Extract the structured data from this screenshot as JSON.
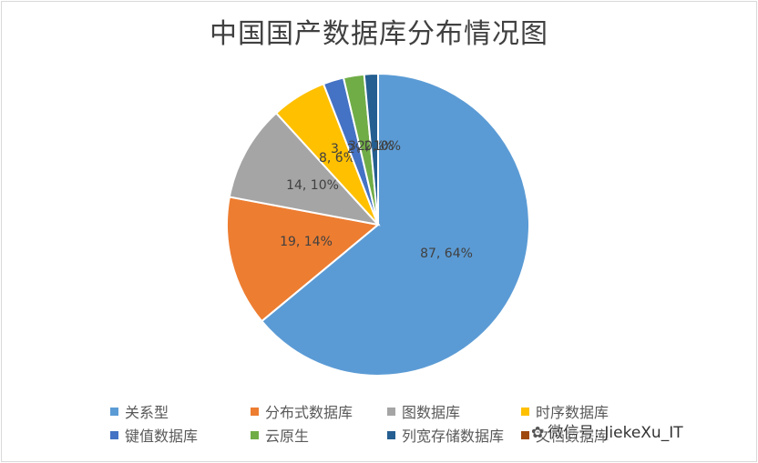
{
  "chart_data": {
    "type": "pie",
    "title": "中国国产数据库分布情况图",
    "slices": [
      {
        "label": "关系型",
        "value": 87,
        "percent": "64%",
        "color": "#5b9bd5"
      },
      {
        "label": "分布式数据库",
        "value": 19,
        "percent": "14%",
        "color": "#ed7d31"
      },
      {
        "label": "图数据库",
        "value": 14,
        "percent": "10%",
        "color": "#a5a5a5"
      },
      {
        "label": "时序数据库",
        "value": 8,
        "percent": "6%",
        "color": "#ffc000"
      },
      {
        "label": "键值数据库",
        "value": 3,
        "percent": "2%",
        "color": "#4472c4"
      },
      {
        "label": "云原生",
        "value": 3,
        "percent": "2%",
        "color": "#70ad47"
      },
      {
        "label": "列宽存储数据库",
        "value": 2,
        "percent": "1%",
        "color": "#255e91"
      },
      {
        "label": "文档数据库",
        "value": 0,
        "percent": "0%",
        "color": "#9e480e"
      }
    ],
    "legend_position": "bottom"
  },
  "watermark": {
    "text": "微信号: JiekeXu_IT",
    "icon": "wechat-icon"
  }
}
